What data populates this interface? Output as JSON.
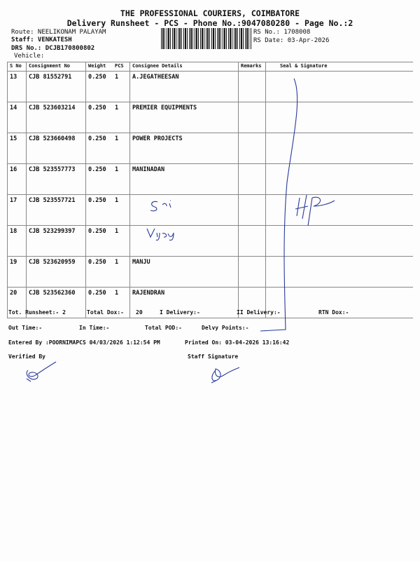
{
  "header": {
    "company": "THE PROFESSIONAL COURIERS, COIMBATORE",
    "title": "Delivery Runsheet - PCS - Phone No.:9047080280 - Page No.:2",
    "route": "Route: NEELIKONAM PALAYAM",
    "staff": "Staff: VENKATESH",
    "drs": "DRS No.: DCJB170800802",
    "vehicle": "Vehicle:",
    "rs_no": "RS No.: 1708008",
    "rs_date": "RS Date: 03-Apr-2026"
  },
  "table": {
    "columns": [
      "S No",
      "Consignment No",
      "Weight",
      "PCS",
      "Consignee Details",
      "Remarks",
      "Seal & Signature"
    ],
    "rows": [
      {
        "sno": "13",
        "cno": "CJB 81552791",
        "weight": "0.250",
        "pcs": "1",
        "consignee": "A.JEGATHEESAN"
      },
      {
        "sno": "14",
        "cno": "CJB 523603214",
        "weight": "0.250",
        "pcs": "1",
        "consignee": "PREMIER EQUIPMENTS"
      },
      {
        "sno": "15",
        "cno": "CJB 523660498",
        "weight": "0.250",
        "pcs": "1",
        "consignee": "POWER PROJECTS"
      },
      {
        "sno": "16",
        "cno": "CJB 523557773",
        "weight": "0.250",
        "pcs": "1",
        "consignee": "MANINADAN"
      },
      {
        "sno": "17",
        "cno": "CJB 523557721",
        "weight": "0.250",
        "pcs": "1",
        "consignee": ""
      },
      {
        "sno": "18",
        "cno": "CJB 523299397",
        "weight": "0.250",
        "pcs": "1",
        "consignee": ""
      },
      {
        "sno": "19",
        "cno": "CJB 523620959",
        "weight": "0.250",
        "pcs": "1",
        "consignee": "MANJU"
      },
      {
        "sno": "20",
        "cno": "CJB 523562360",
        "weight": "0.250",
        "pcs": "1",
        "consignee": "RAJENDRAN"
      }
    ]
  },
  "footer": {
    "tot_runsheet": "Tot. Runsheet:- 2",
    "total_dox": "Total Dox:-",
    "total_dox_val": "20",
    "i_delivery": "I Delivery:-",
    "ii_delivery": "II Delivery:-",
    "rtn_dox": "RTN Dox:-",
    "out_time": "Out Time:-",
    "in_time": "In Time:-",
    "total_pod": "Total POD:-",
    "delvy_points": "Delvy Points:-",
    "entered_by": "Entered By :POORNIMAPCS 04/03/2026 1:12:54 PM",
    "printed_on": "Printed On: 03-04-2026 13:16:42",
    "verified_by": "Verified By",
    "staff_signature": "Staff Signature"
  },
  "colors": {
    "ink": "#2a3a9a"
  }
}
